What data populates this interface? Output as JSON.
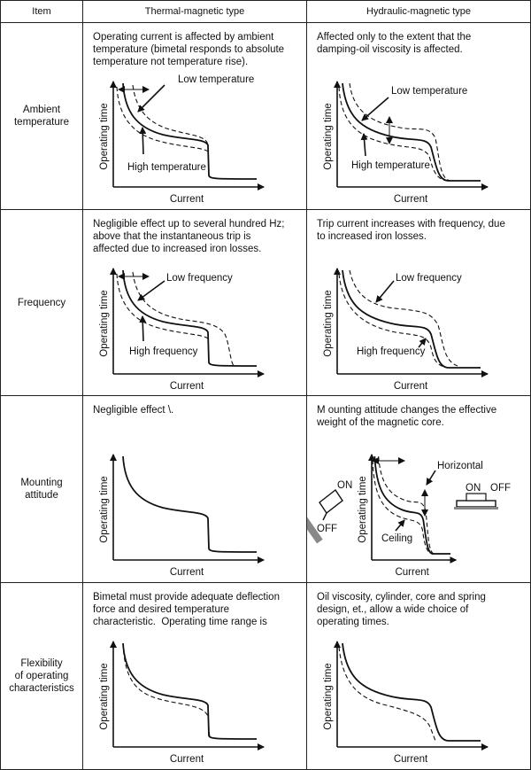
{
  "header": {
    "item": "Item",
    "thermal": "Thermal-magnetic type",
    "hydraulic": "Hydraulic-magnetic type"
  },
  "rows": [
    {
      "item": [
        "Ambient",
        "temperature"
      ],
      "thermal": {
        "text": [
          "Operating current is affected by ambient",
          "temperature (bimetal responds to absolute",
          "temperature not temperature rise)."
        ],
        "y_label": "Operating time",
        "x_label": "Current",
        "annotations": [
          "Low temperature",
          "High temperature"
        ]
      },
      "hydraulic": {
        "text": [
          "Affected only to the extent that the",
          "damping-oil viscosity is affected."
        ],
        "y_label": "Operating time",
        "x_label": "Current",
        "annotations": [
          "Low temperature",
          "High temperature"
        ]
      }
    },
    {
      "item": [
        "Frequency"
      ],
      "thermal": {
        "text": [
          "Negligible effect up to several hundred Hz;",
          "above that the instantaneous trip is",
          "affected due to increased iron losses."
        ],
        "y_label": "Operating time",
        "x_label": "Current",
        "annotations": [
          "Low frequency",
          "High frequency"
        ]
      },
      "hydraulic": {
        "text": [
          "Trip current increases with frequency, due",
          "to increased iron losses."
        ],
        "y_label": "Operating time",
        "x_label": "Current",
        "annotations": [
          "Low frequency",
          "High frequency"
        ]
      }
    },
    {
      "item": [
        "Mounting",
        "attitude"
      ],
      "thermal": {
        "text": [
          "Negligible effect \\."
        ],
        "y_label": "Operating time",
        "x_label": "Current",
        "annotations": []
      },
      "hydraulic": {
        "text": [
          "M ounting attitude changes the effective",
          "weight of the magnetic core."
        ],
        "y_label": "Operating time",
        "x_label": "Current",
        "annotations": [
          "Horizontal",
          "Ceiling",
          "ON",
          "OFF",
          "ON",
          "OFF"
        ]
      }
    },
    {
      "item": [
        "Flexibility",
        "of operating",
        "characteristics"
      ],
      "thermal": {
        "text": [
          "Bimetal must provide adequate deflection",
          "force and desired temperature",
          "characteristic.  Operating time range is"
        ],
        "y_label": "Operating time",
        "x_label": "Current",
        "annotations": []
      },
      "hydraulic": {
        "text": [
          "Oil viscosity, cylinder, core and spring",
          "design, et., allow a wide choice of",
          "operating times."
        ],
        "y_label": "Operating time",
        "x_label": "Current",
        "annotations": []
      }
    }
  ]
}
